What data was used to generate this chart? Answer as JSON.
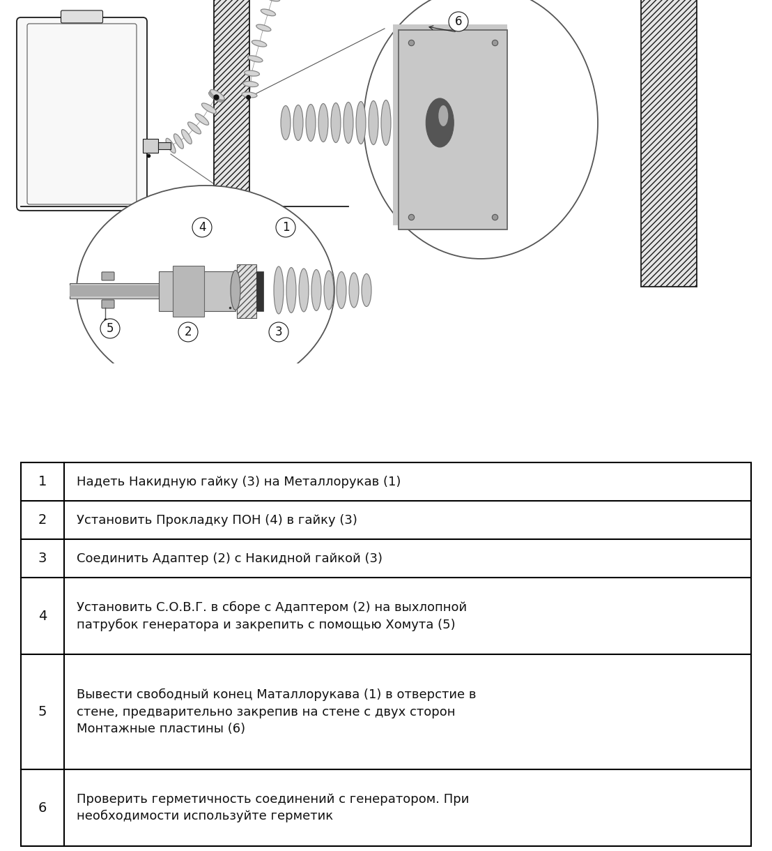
{
  "bg_color": "#ffffff",
  "table_rows": [
    {
      "num": "1",
      "text": "Надеть Накидную гайку (3) на Металлорукав (1)"
    },
    {
      "num": "2",
      "text": "Установить Прокладку ПОН (4) в гайку (3)"
    },
    {
      "num": "3",
      "text": "Соединить Адаптер (2) с Накидной гайкой (3)"
    },
    {
      "num": "4",
      "text": "Установить С.О.В.Г. в сборе с Адаптером (2) на выхлопной\nпатрубок генератора и закрепить с помощью Хомута (5)"
    },
    {
      "num": "5",
      "text": "Вывести свободный конец Маталлорукава (1) в отверстие в\nстене, предварительно закрепив на стене с двух сторон\nМонтажные пластины (6)"
    },
    {
      "num": "6",
      "text": "Проверить герметичность соединений с генератором. При\nнеобходимости используйте герметик"
    }
  ],
  "border_color": "#000000",
  "border_lw": 1.5,
  "font_size": 13.0,
  "num_font_size": 14,
  "row_lines": [
    1,
    1,
    1,
    2,
    3,
    2
  ]
}
